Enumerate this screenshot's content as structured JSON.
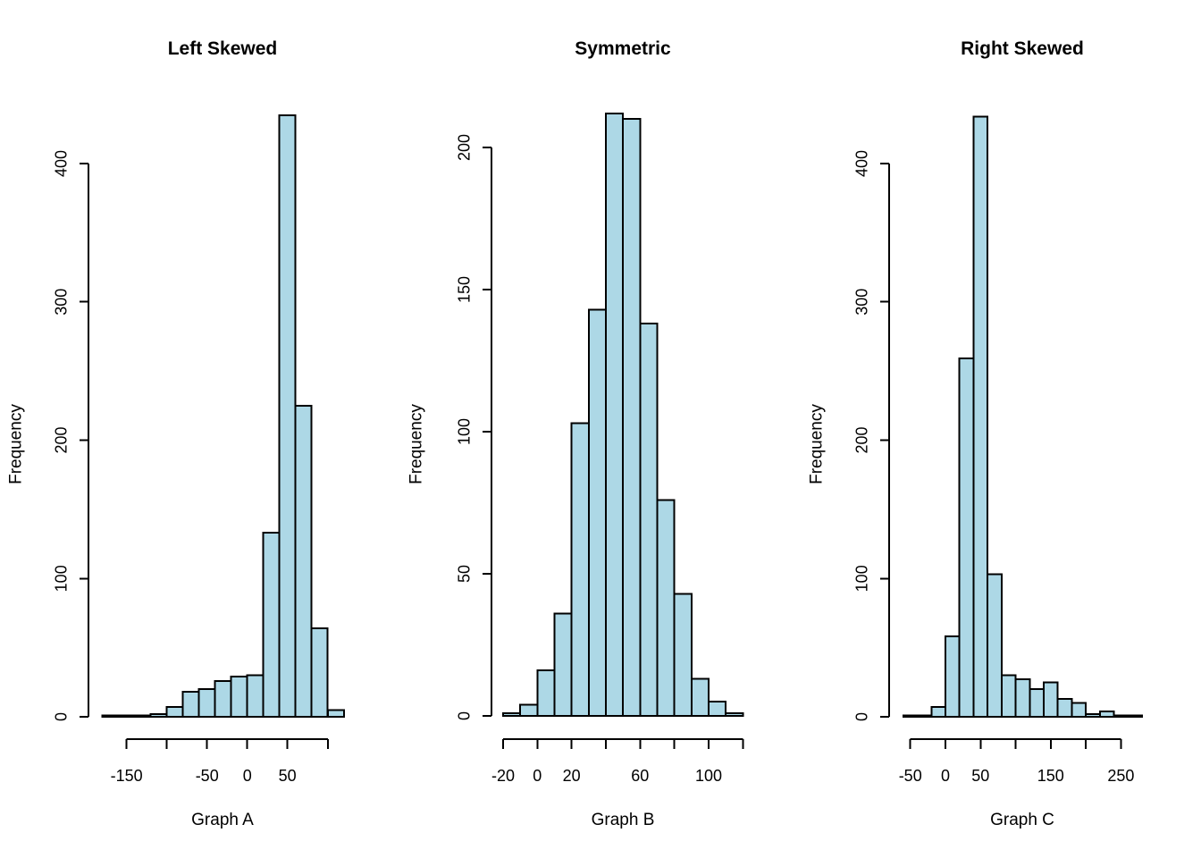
{
  "figure": {
    "background": "#ffffff",
    "bar_fill": "#ADD8E6",
    "bar_stroke": "#000000",
    "text_color": "#000000"
  },
  "chart_data": [
    {
      "type": "bar",
      "subtype": "histogram",
      "title": "Left Skewed",
      "xlabel": "Graph A",
      "ylabel": "Frequency",
      "bin_start": -180,
      "bin_width": 20,
      "counts": [
        1,
        1,
        1,
        2,
        7,
        18,
        20,
        26,
        29,
        30,
        133,
        435,
        225,
        64,
        5
      ],
      "x_ticks": [
        {
          "value": -150,
          "label": "-150"
        },
        {
          "value": -100,
          "label": ""
        },
        {
          "value": -50,
          "label": "-50"
        },
        {
          "value": 0,
          "label": "0"
        },
        {
          "value": 50,
          "label": "50"
        },
        {
          "value": 100,
          "label": ""
        }
      ],
      "y_ticks": [
        {
          "value": 0,
          "label": "0"
        },
        {
          "value": 100,
          "label": "100"
        },
        {
          "value": 200,
          "label": "200"
        },
        {
          "value": 300,
          "label": "300"
        },
        {
          "value": 400,
          "label": "400"
        }
      ],
      "xlim": [
        -180,
        120
      ],
      "ylim": [
        0,
        435
      ],
      "grid": false,
      "legend": false
    },
    {
      "type": "bar",
      "subtype": "histogram",
      "title": "Symmetric",
      "xlabel": "Graph B",
      "ylabel": "Frequency",
      "bin_start": -20,
      "bin_width": 10,
      "counts": [
        1,
        4,
        16,
        36,
        103,
        143,
        212,
        210,
        138,
        76,
        43,
        13,
        5,
        1
      ],
      "x_ticks": [
        {
          "value": -20,
          "label": "-20"
        },
        {
          "value": 0,
          "label": "0"
        },
        {
          "value": 20,
          "label": "20"
        },
        {
          "value": 40,
          "label": ""
        },
        {
          "value": 60,
          "label": "60"
        },
        {
          "value": 80,
          "label": ""
        },
        {
          "value": 100,
          "label": "100"
        },
        {
          "value": 120,
          "label": ""
        }
      ],
      "y_ticks": [
        {
          "value": 0,
          "label": "0"
        },
        {
          "value": 50,
          "label": "50"
        },
        {
          "value": 100,
          "label": "100"
        },
        {
          "value": 150,
          "label": "150"
        },
        {
          "value": 200,
          "label": "200"
        }
      ],
      "xlim": [
        -20,
        120
      ],
      "ylim": [
        0,
        212
      ],
      "grid": false,
      "legend": false
    },
    {
      "type": "bar",
      "subtype": "histogram",
      "title": "Right Skewed",
      "xlabel": "Graph C",
      "ylabel": "Frequency",
      "bin_start": -60,
      "bin_width": 20,
      "counts": [
        1,
        1,
        7,
        58,
        259,
        434,
        103,
        30,
        27,
        20,
        25,
        13,
        10,
        2,
        4,
        1,
        1
      ],
      "x_ticks": [
        {
          "value": -50,
          "label": "-50"
        },
        {
          "value": 0,
          "label": "0"
        },
        {
          "value": 50,
          "label": "50"
        },
        {
          "value": 100,
          "label": ""
        },
        {
          "value": 150,
          "label": "150"
        },
        {
          "value": 200,
          "label": ""
        },
        {
          "value": 250,
          "label": "250"
        }
      ],
      "y_ticks": [
        {
          "value": 0,
          "label": "0"
        },
        {
          "value": 100,
          "label": "100"
        },
        {
          "value": 200,
          "label": "200"
        },
        {
          "value": 300,
          "label": "300"
        },
        {
          "value": 400,
          "label": "400"
        }
      ],
      "xlim": [
        -60,
        280
      ],
      "ylim": [
        0,
        434
      ],
      "grid": false,
      "legend": false
    }
  ]
}
